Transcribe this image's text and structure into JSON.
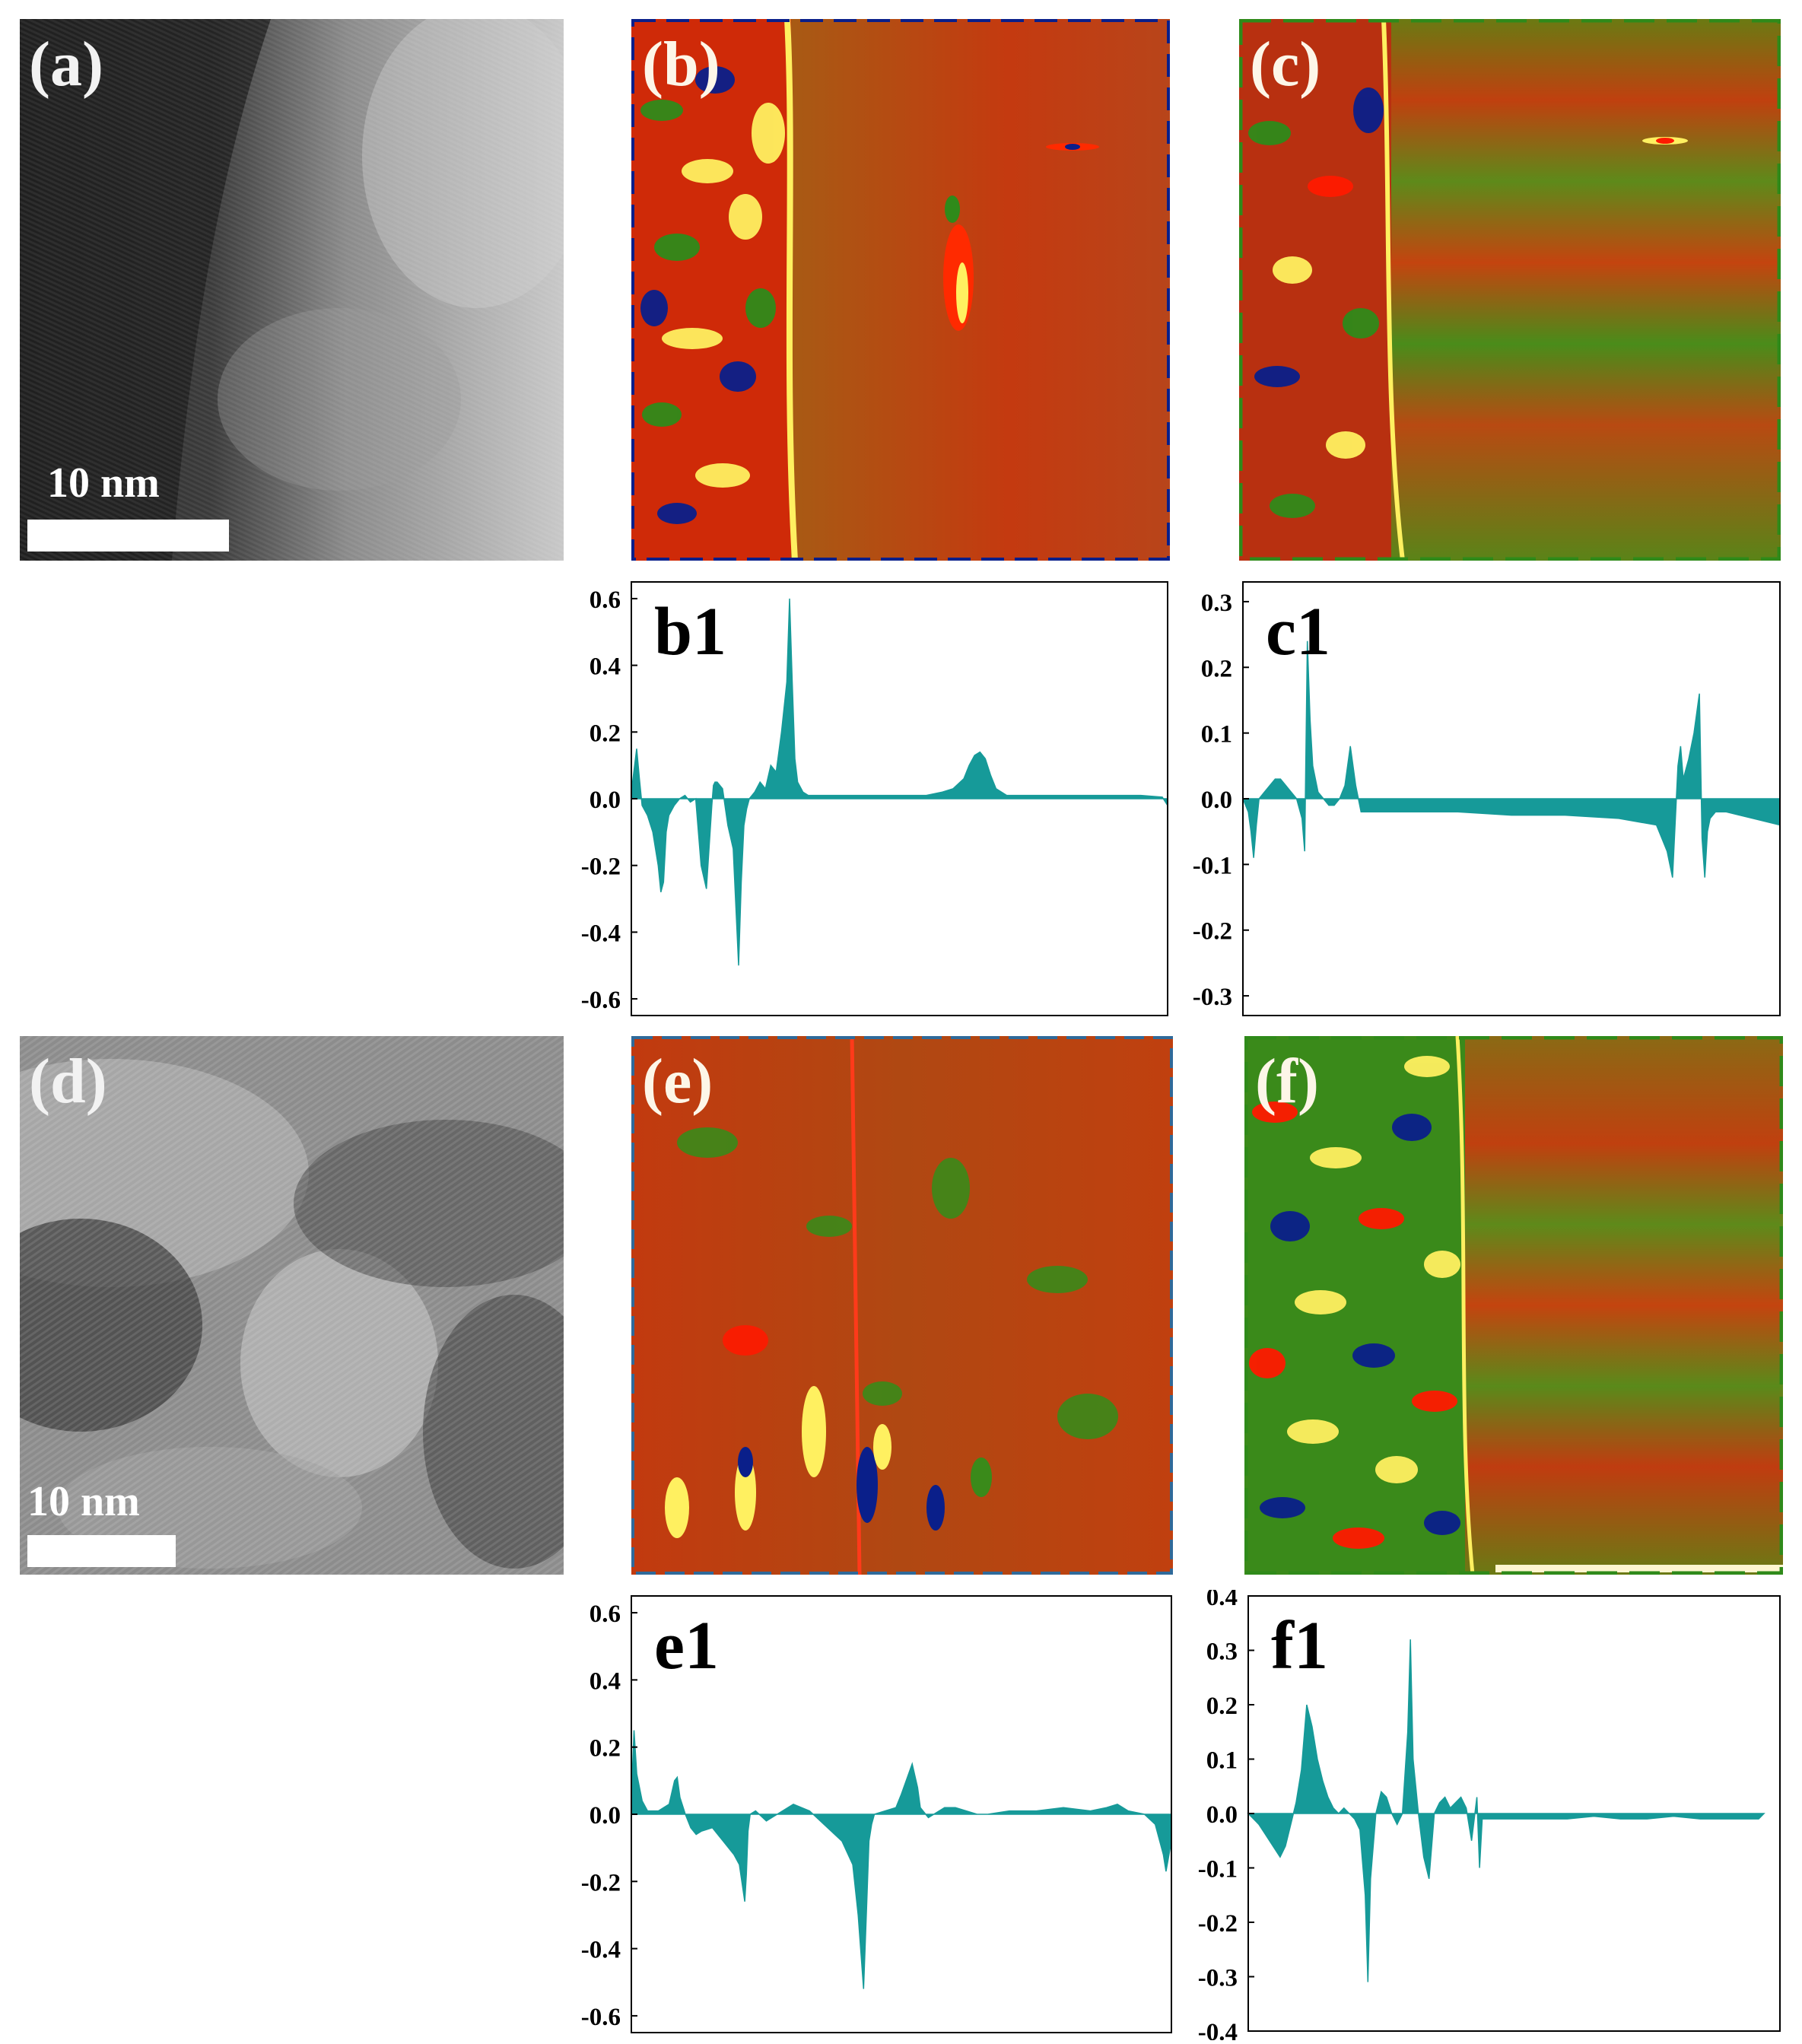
{
  "panels": {
    "a": {
      "label": "(a)",
      "scale_label": "10 nm"
    },
    "b": {
      "label": "(b)"
    },
    "c": {
      "label": "(c)"
    },
    "d": {
      "label": "(d)",
      "scale_label": "10 nm"
    },
    "e": {
      "label": "(e)"
    },
    "f": {
      "label": "(f)"
    }
  },
  "colors": {
    "fill": "#169a99",
    "map_base": "#b84a12",
    "map_green": "#2f8a1a",
    "map_red": "#ff1a00",
    "map_yellow": "#fff060",
    "map_blue": "#0a1f8a"
  },
  "chart_data": [
    {
      "id": "b1",
      "title": "b1",
      "type": "area",
      "ylim": [
        -0.65,
        0.65
      ],
      "yticks": [
        "0.6",
        "0.4",
        "0.2",
        "0.0",
        "-0.2",
        "-0.4",
        "-0.6"
      ],
      "xlim": [
        0,
        100
      ],
      "xlabel": "",
      "ylabel": "",
      "x": [
        0,
        1,
        1.5,
        2,
        3,
        4,
        5,
        5.5,
        6,
        6.5,
        7,
        8,
        9,
        10,
        11,
        12,
        13,
        14,
        15,
        15.3,
        15.6,
        16,
        17,
        18,
        19,
        20,
        20.5,
        21,
        21.5,
        22,
        23,
        24,
        25,
        26,
        27,
        28,
        29,
        29.5,
        30,
        30.5,
        31,
        32,
        33,
        35,
        40,
        45,
        50,
        55,
        58,
        60,
        62,
        63,
        64,
        65,
        66,
        67,
        68,
        70,
        75,
        80,
        85,
        90,
        95,
        99,
        100
      ],
      "y": [
        0.02,
        0.15,
        0.06,
        -0.02,
        -0.05,
        -0.1,
        -0.2,
        -0.28,
        -0.25,
        -0.1,
        -0.05,
        -0.02,
        0.0,
        0.01,
        -0.01,
        0.0,
        -0.2,
        -0.27,
        -0.02,
        0.04,
        0.05,
        0.05,
        0.03,
        -0.08,
        -0.15,
        -0.5,
        -0.25,
        -0.08,
        -0.03,
        0.0,
        0.02,
        0.05,
        0.03,
        0.1,
        0.08,
        0.2,
        0.35,
        0.6,
        0.35,
        0.12,
        0.05,
        0.02,
        0.01,
        0.01,
        0.01,
        0.01,
        0.01,
        0.01,
        0.02,
        0.03,
        0.06,
        0.1,
        0.13,
        0.14,
        0.12,
        0.07,
        0.03,
        0.01,
        0.01,
        0.01,
        0.01,
        0.01,
        0.01,
        0.005,
        -0.02
      ]
    },
    {
      "id": "c1",
      "title": "c1",
      "type": "area",
      "ylim": [
        -0.33,
        0.33
      ],
      "yticks": [
        "0.3",
        "0.2",
        "0.1",
        "0.0",
        "-0.1",
        "-0.2",
        "-0.3"
      ],
      "xlim": [
        0,
        100
      ],
      "xlabel": "",
      "ylabel": "",
      "x": [
        0,
        1,
        1.5,
        2,
        2.5,
        3,
        4,
        5,
        6,
        7,
        8,
        9,
        10,
        11,
        11.5,
        12,
        12.5,
        13,
        14,
        15,
        16,
        17,
        18,
        19,
        20,
        21,
        22,
        23,
        24,
        25,
        30,
        40,
        50,
        60,
        70,
        77,
        78,
        79,
        80,
        81,
        81.5,
        82,
        83,
        84,
        85,
        85.5,
        86,
        86.5,
        87,
        88,
        90,
        95,
        100
      ],
      "y": [
        0.0,
        -0.02,
        -0.05,
        -0.09,
        -0.04,
        0.0,
        0.01,
        0.02,
        0.03,
        0.03,
        0.02,
        0.01,
        0.0,
        -0.03,
        -0.08,
        0.24,
        0.12,
        0.05,
        0.01,
        0.0,
        -0.01,
        -0.01,
        0.0,
        0.02,
        0.08,
        0.02,
        -0.02,
        -0.02,
        -0.02,
        -0.02,
        -0.02,
        -0.02,
        -0.025,
        -0.025,
        -0.03,
        -0.04,
        -0.06,
        -0.08,
        -0.12,
        0.05,
        0.08,
        0.03,
        0.06,
        0.1,
        0.16,
        -0.06,
        -0.12,
        -0.05,
        -0.03,
        -0.02,
        -0.02,
        -0.03,
        -0.04
      ]
    },
    {
      "id": "e1",
      "title": "e1",
      "type": "area",
      "ylim": [
        -0.65,
        0.65
      ],
      "yticks": [
        "0.6",
        "0.4",
        "0.2",
        "0.0",
        "-0.2",
        "-0.4",
        "-0.6"
      ],
      "xlim": [
        0,
        100
      ],
      "xlabel": "",
      "ylabel": "",
      "x": [
        0,
        0.5,
        1,
        2,
        3,
        5,
        7,
        8,
        8.5,
        9,
        10,
        11,
        12,
        13,
        15,
        17,
        19,
        20,
        21,
        21.3,
        21.6,
        22,
        23,
        25,
        27,
        30,
        33,
        35,
        37,
        39,
        41,
        42,
        43,
        43.5,
        44,
        44.5,
        45,
        47,
        49,
        50,
        52,
        53,
        53.5,
        54,
        55,
        56,
        58,
        60,
        62,
        64,
        66,
        70,
        75,
        80,
        85,
        88,
        90,
        92,
        95,
        97,
        98.5,
        99,
        100
      ],
      "y": [
        0.05,
        0.25,
        0.12,
        0.04,
        0.01,
        0.01,
        0.03,
        0.1,
        0.11,
        0.05,
        0.0,
        -0.04,
        -0.06,
        -0.05,
        -0.04,
        -0.08,
        -0.12,
        -0.15,
        -0.26,
        -0.18,
        -0.05,
        0.0,
        0.01,
        -0.02,
        0.0,
        0.03,
        0.01,
        -0.02,
        -0.05,
        -0.08,
        -0.15,
        -0.3,
        -0.52,
        -0.3,
        -0.08,
        -0.03,
        0.0,
        0.01,
        0.02,
        0.06,
        0.15,
        0.08,
        0.02,
        0.01,
        -0.01,
        0.0,
        0.02,
        0.02,
        0.01,
        0.0,
        0.0,
        0.01,
        0.01,
        0.02,
        0.01,
        0.02,
        0.03,
        0.01,
        0.0,
        -0.03,
        -0.12,
        -0.17,
        -0.08
      ]
    },
    {
      "id": "f1",
      "title": "f1",
      "type": "area",
      "ylim": [
        -0.4,
        0.4
      ],
      "yticks": [
        "0.4",
        "0.3",
        "0.2",
        "0.1",
        "0.0",
        "-0.1",
        "-0.2",
        "-0.3",
        "-0.4"
      ],
      "xlim": [
        0,
        100
      ],
      "xlabel": "",
      "ylabel": "",
      "x": [
        0,
        2,
        4,
        6,
        7,
        8,
        9,
        10,
        11,
        12,
        13,
        14,
        15,
        16,
        17,
        18,
        19,
        20,
        21,
        22,
        22.5,
        23,
        24,
        25,
        26,
        27,
        28,
        29,
        30,
        30.5,
        31,
        32,
        33,
        34,
        35,
        36,
        37,
        38,
        39,
        40,
        41,
        42,
        43,
        43.5,
        44,
        45,
        50,
        55,
        60,
        65,
        70,
        75,
        80,
        85,
        90,
        95,
        96,
        97
      ],
      "y": [
        0.0,
        -0.02,
        -0.05,
        -0.08,
        -0.06,
        -0.02,
        0.02,
        0.08,
        0.2,
        0.16,
        0.1,
        0.06,
        0.03,
        0.01,
        0.0,
        0.01,
        0.0,
        -0.01,
        -0.03,
        -0.15,
        -0.31,
        -0.12,
        0.0,
        0.04,
        0.03,
        0.0,
        -0.02,
        0.0,
        0.15,
        0.32,
        0.1,
        0.0,
        -0.08,
        -0.12,
        0.0,
        0.02,
        0.03,
        0.01,
        0.02,
        0.03,
        0.01,
        -0.05,
        0.03,
        -0.1,
        -0.01,
        -0.01,
        -0.01,
        -0.01,
        -0.01,
        -0.005,
        -0.01,
        -0.01,
        -0.005,
        -0.01,
        -0.01,
        -0.01,
        -0.01,
        0.0
      ]
    }
  ]
}
